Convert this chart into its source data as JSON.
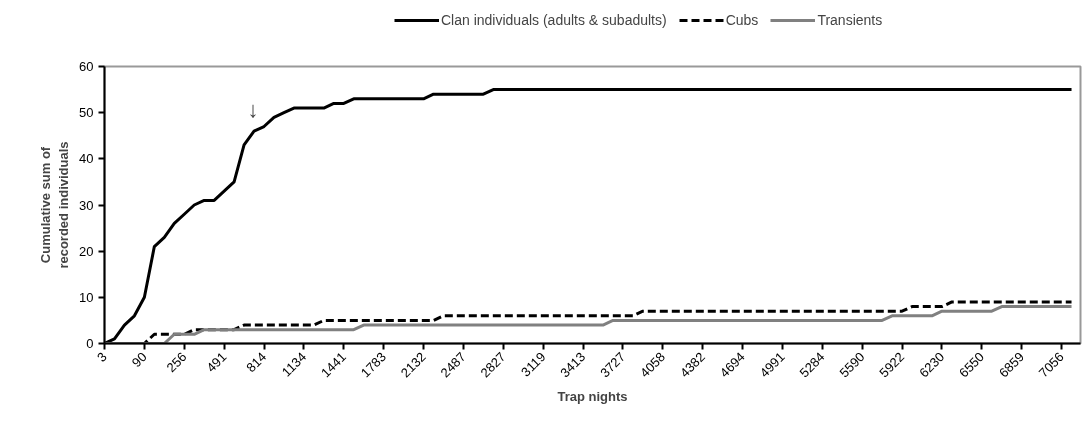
{
  "chart_data": {
    "type": "line",
    "xlabel": "Trap nights",
    "ylabel": "Cumulative sum of\nrecorded individuals",
    "categories": [
      "3",
      null,
      null,
      null,
      "90",
      null,
      null,
      null,
      "256",
      null,
      null,
      null,
      "491",
      null,
      null,
      null,
      "814",
      null,
      null,
      null,
      "1134",
      null,
      null,
      null,
      "1441",
      null,
      null,
      null,
      "1783",
      null,
      null,
      null,
      "2132",
      null,
      null,
      null,
      "2487",
      null,
      null,
      null,
      "2827",
      null,
      null,
      null,
      "3119",
      null,
      null,
      null,
      "3413",
      null,
      null,
      null,
      "3727",
      null,
      null,
      null,
      "4058",
      null,
      null,
      null,
      "4382",
      null,
      null,
      null,
      "4694",
      null,
      null,
      null,
      "4991",
      null,
      null,
      null,
      "5284",
      null,
      null,
      null,
      "5590",
      null,
      null,
      null,
      "5922",
      null,
      null,
      null,
      "6230",
      null,
      null,
      null,
      "6550",
      null,
      null,
      null,
      "6859",
      null,
      null,
      null,
      "7056",
      null
    ],
    "series": [
      {
        "name": "Clan individuals (adults & subadults)",
        "color": "#000000",
        "line_style": "solid",
        "values": [
          0,
          1,
          4,
          6,
          10,
          21,
          23,
          26,
          28,
          30,
          31,
          31,
          33,
          35,
          43,
          46,
          47,
          49,
          50,
          51,
          51,
          51,
          51,
          52,
          52,
          53,
          53,
          53,
          53,
          53,
          53,
          53,
          53,
          54,
          54,
          54,
          54,
          54,
          54,
          55,
          55,
          55,
          55,
          55,
          55,
          55,
          55,
          55,
          55,
          55,
          55,
          55,
          55,
          55,
          55,
          55,
          55,
          55,
          55,
          55,
          55,
          55,
          55,
          55,
          55,
          55,
          55,
          55,
          55,
          55,
          55,
          55,
          55,
          55,
          55,
          55,
          55,
          55,
          55,
          55,
          55,
          55,
          55,
          55,
          55,
          55,
          55,
          55,
          55,
          55,
          55,
          55,
          55,
          55,
          55,
          55,
          55,
          55
        ]
      },
      {
        "name": "Cubs",
        "color": "#000000",
        "line_style": "dashed",
        "values": [
          0,
          0,
          0,
          0,
          0,
          2,
          2,
          2,
          2,
          3,
          3,
          3,
          3,
          3,
          4,
          4,
          4,
          4,
          4,
          4,
          4,
          4,
          5,
          5,
          5,
          5,
          5,
          5,
          5,
          5,
          5,
          5,
          5,
          5,
          6,
          6,
          6,
          6,
          6,
          6,
          6,
          6,
          6,
          6,
          6,
          6,
          6,
          6,
          6,
          6,
          6,
          6,
          6,
          6,
          7,
          7,
          7,
          7,
          7,
          7,
          7,
          7,
          7,
          7,
          7,
          7,
          7,
          7,
          7,
          7,
          7,
          7,
          7,
          7,
          7,
          7,
          7,
          7,
          7,
          7,
          7,
          8,
          8,
          8,
          8,
          9,
          9,
          9,
          9,
          9,
          9,
          9,
          9,
          9,
          9,
          9,
          9,
          9
        ]
      },
      {
        "name": "Transients",
        "color": "#808080",
        "line_style": "solid",
        "values": [
          0,
          0,
          0,
          0,
          0,
          0,
          0,
          2,
          2,
          2,
          3,
          3,
          3,
          3,
          3,
          3,
          3,
          3,
          3,
          3,
          3,
          3,
          3,
          3,
          3,
          3,
          4,
          4,
          4,
          4,
          4,
          4,
          4,
          4,
          4,
          4,
          4,
          4,
          4,
          4,
          4,
          4,
          4,
          4,
          4,
          4,
          4,
          4,
          4,
          4,
          4,
          5,
          5,
          5,
          5,
          5,
          5,
          5,
          5,
          5,
          5,
          5,
          5,
          5,
          5,
          5,
          5,
          5,
          5,
          5,
          5,
          5,
          5,
          5,
          5,
          5,
          5,
          5,
          5,
          6,
          6,
          6,
          6,
          6,
          7,
          7,
          7,
          7,
          7,
          7,
          8,
          8,
          8,
          8,
          8,
          8,
          8,
          8
        ]
      }
    ],
    "ylim": [
      0,
      60
    ],
    "yticks": [
      0,
      10,
      20,
      30,
      40,
      50,
      60
    ],
    "grid": false,
    "legend": "top",
    "marker": "none",
    "annotations": [
      "↓"
    ]
  }
}
